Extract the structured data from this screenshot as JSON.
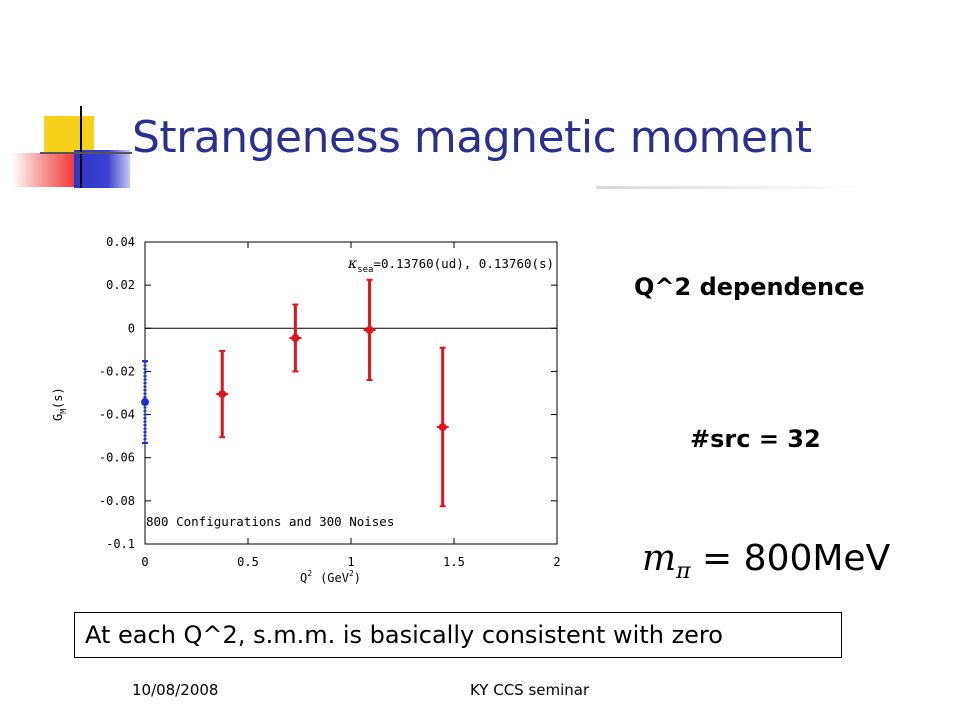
{
  "slide": {
    "title": "Strangeness magnetic moment",
    "side_label_1": "Q^2 dependence",
    "side_label_2": "#src = 32",
    "formula_m": "m",
    "formula_sub": "π",
    "formula_rest": " = 800MeV",
    "conclusion": "At each Q^2, s.m.m. is basically consistent with zero",
    "footer_date": "10/08/2008",
    "footer_center": "KY CCS seminar"
  },
  "colors": {
    "title": "#2b2f8f",
    "series_red": "#e0141e",
    "series_blue": "#1a2fd6",
    "deco_yellow": "#f7d21c",
    "deco_blue": "#2f35c8",
    "deco_red": "#f23a3a"
  },
  "chart_data": {
    "type": "scatter",
    "xlabel": "Q",
    "xlabel_sup": "2",
    "xlabel_unit": "(GeV",
    "xlabel_unit_sup": "2",
    "xlabel_close": ")",
    "ylabel": "G",
    "ylabel_sub": "M",
    "ylabel_rest": "(s)",
    "xlim": [
      0,
      2
    ],
    "ylim": [
      -0.1,
      0.04
    ],
    "xticks": [
      0,
      0.5,
      1,
      1.5,
      2
    ],
    "xtick_labels": [
      "0",
      "0.5",
      "1",
      "1.5",
      "2"
    ],
    "yticks": [
      0.04,
      0.02,
      0,
      -0.02,
      -0.04,
      -0.06,
      -0.08,
      -0.1
    ],
    "ytick_labels": [
      "0.04",
      "0.02",
      "0",
      "-0.02",
      "-0.04",
      "-0.06",
      "-0.08",
      "-0.1"
    ],
    "zero_line": true,
    "grid": false,
    "legend": "none",
    "annotation_kappa": "κ",
    "annotation_kappa_sub": "sea",
    "annotation_kappa_rest": "=0.13760(ud), 0.13760(s)",
    "annotation_bottom": "800 Configurations and 300 Noises",
    "series": [
      {
        "color": "#1a2fd6",
        "style": "dashed",
        "points": [
          {
            "x": 0,
            "y": -0.0342,
            "ylow": -0.0532,
            "yhigh": -0.0152
          }
        ]
      },
      {
        "color": "#e0141e",
        "style": "solid",
        "points": [
          {
            "x": 0.375,
            "y": -0.0305,
            "ylow": -0.0505,
            "yhigh": -0.0105
          },
          {
            "x": 0.73,
            "y": -0.0045,
            "ylow": -0.02,
            "yhigh": 0.011
          },
          {
            "x": 1.09,
            "y": -0.0008,
            "ylow": -0.024,
            "yhigh": 0.0225
          },
          {
            "x": 1.445,
            "y": -0.0458,
            "ylow": -0.0825,
            "yhigh": -0.009
          }
        ]
      }
    ]
  }
}
